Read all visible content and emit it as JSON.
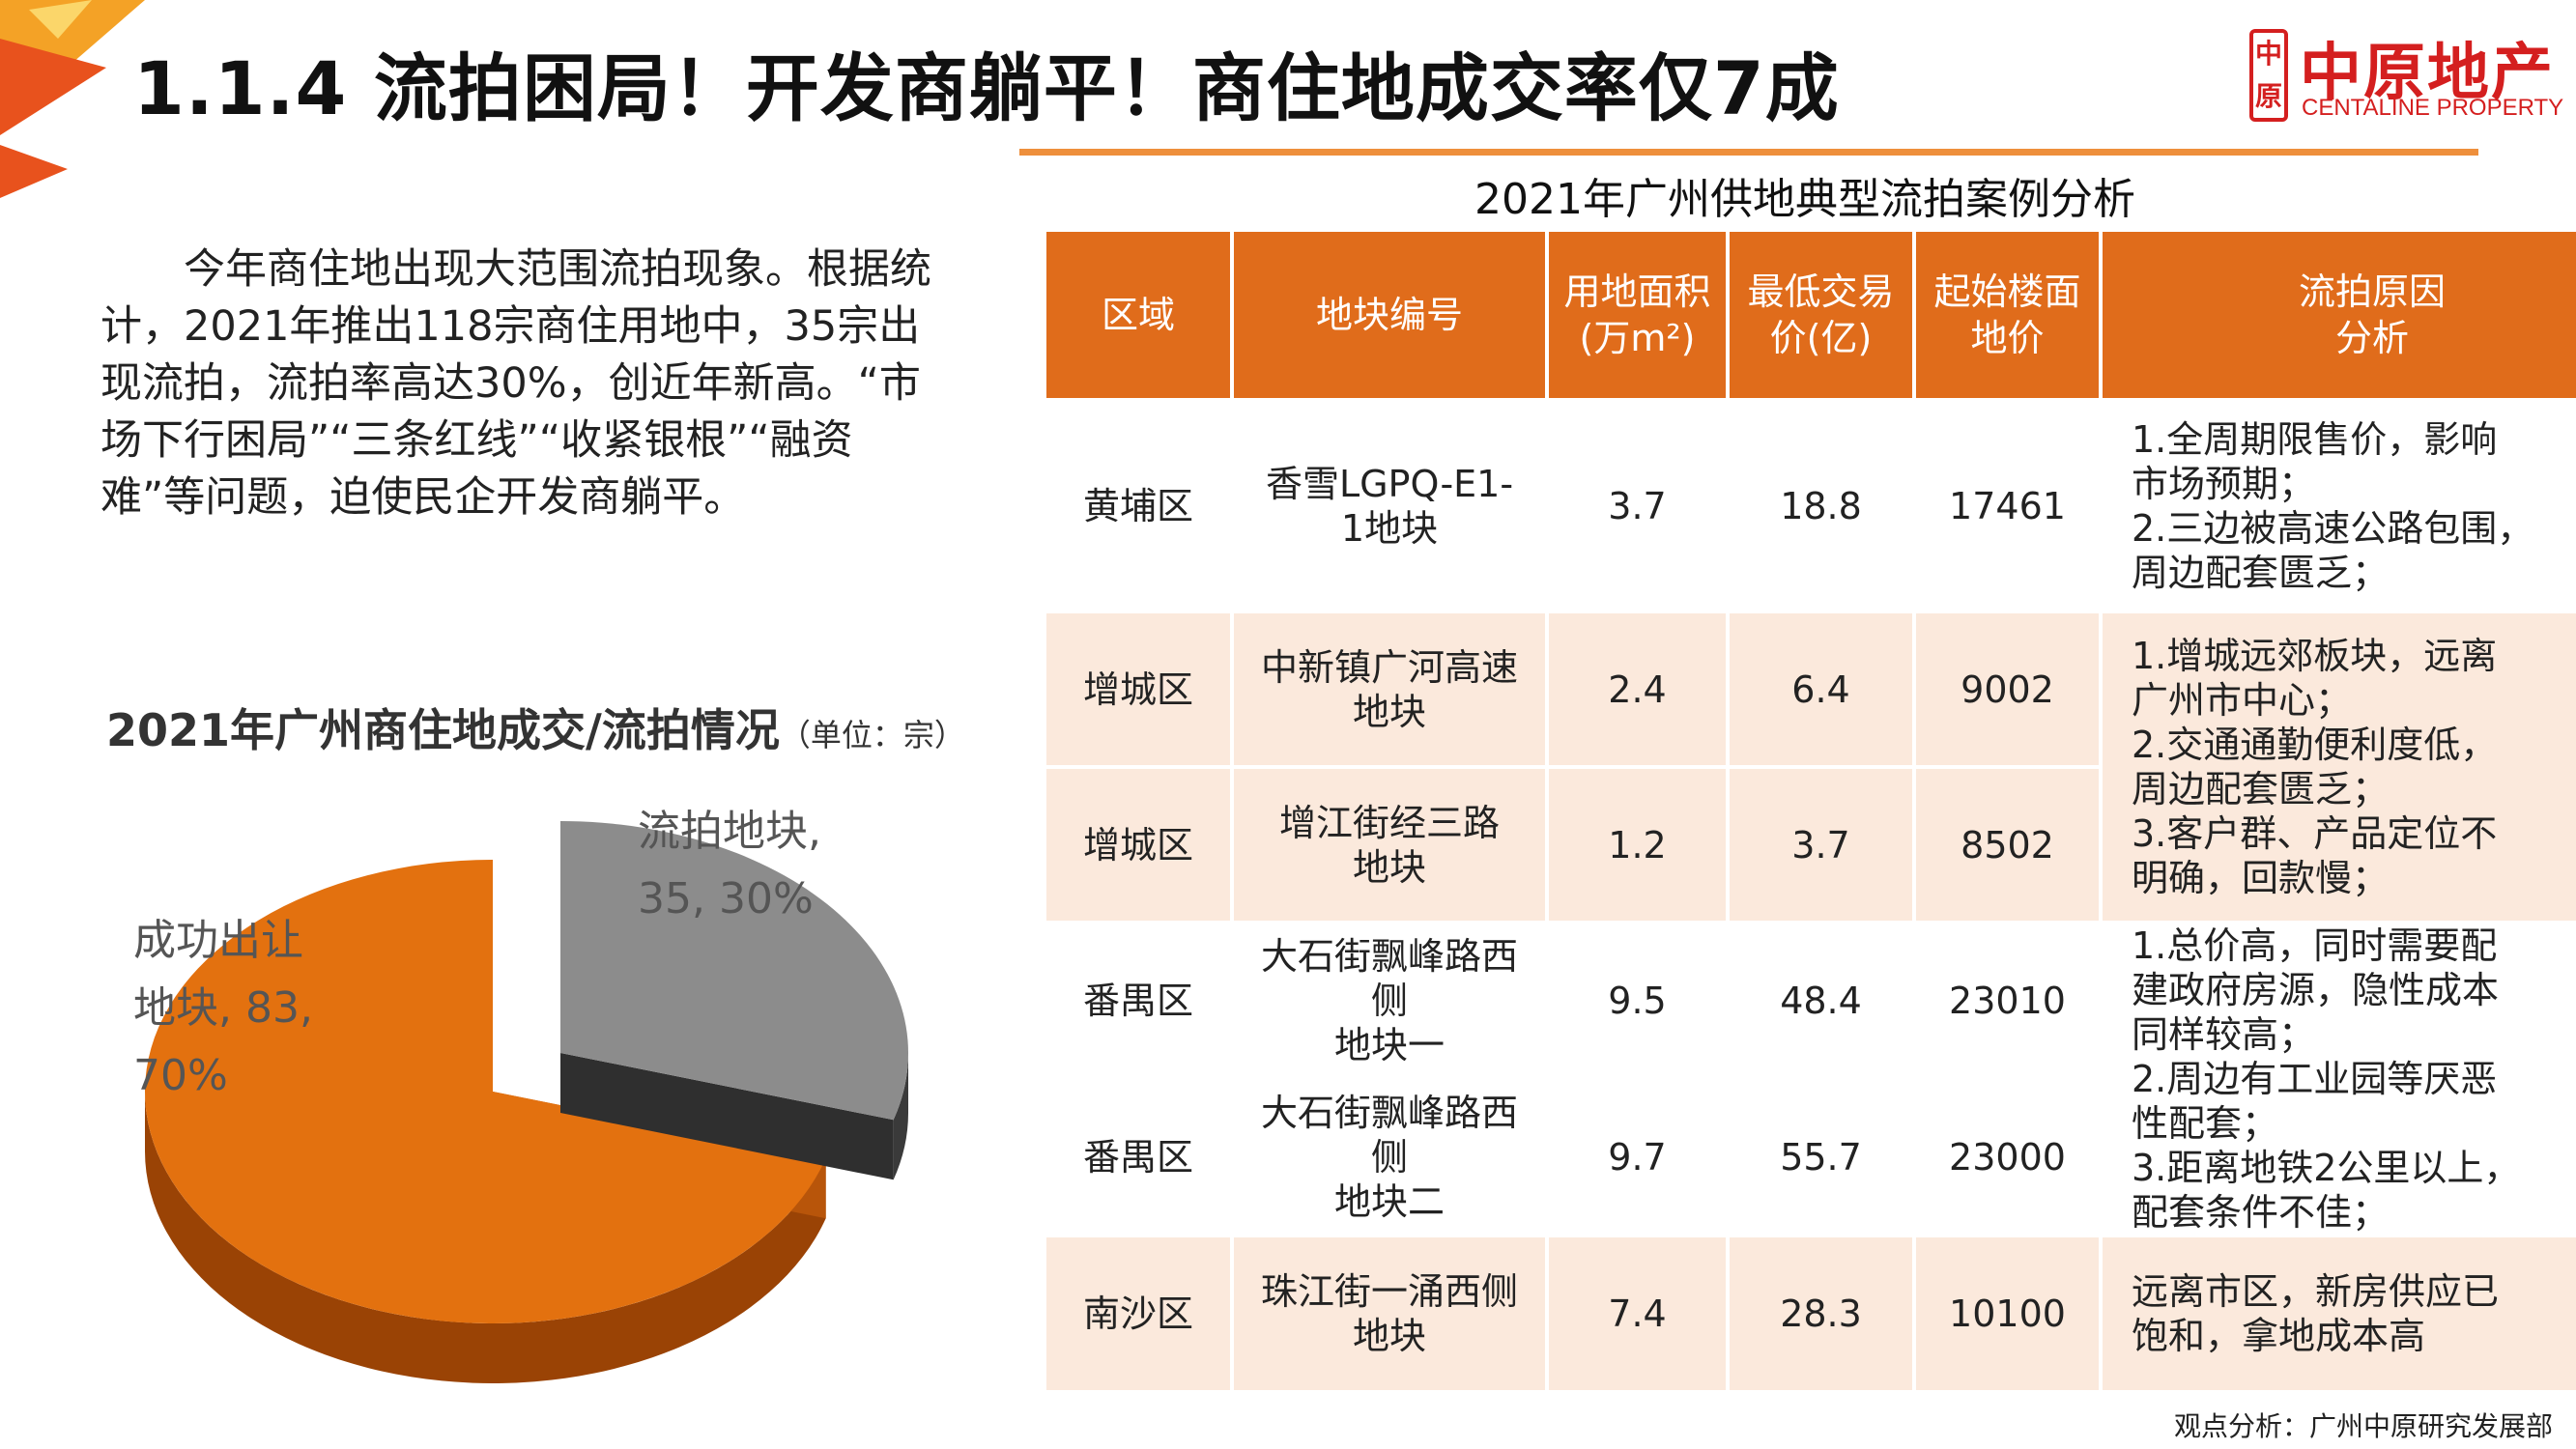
{
  "header": {
    "title": "1.1.4 流拍困局！开发商躺平！商住地成交率仅7成"
  },
  "logo": {
    "mark": "中原",
    "name_cn": "中原地产",
    "name_en": "CENTALINE PROPERTY"
  },
  "intro": {
    "text": "今年商住地出现大范围流拍现象。根据统计，2021年推出118宗商住用地中，35宗出现流拍，流拍率高达30%，创近年新高。“市场下行困局”“三条红线”“收紧银根”“融资难”等问题，迫使民企开发商躺平。"
  },
  "chart": {
    "title": "2021年广州商住地成交/流拍情况",
    "unit": "（单位：宗）",
    "label_sold": "成功出让\n地块, 83,\n70%",
    "label_failed": "流拍地块,\n35, 30%"
  },
  "chart_data": {
    "type": "pie",
    "title": "2021年广州商住地成交/流拍情况",
    "unit": "宗",
    "categories": [
      "成功出让地块",
      "流拍地块"
    ],
    "values": [
      83,
      35
    ],
    "percents": [
      70,
      30
    ],
    "colors": [
      "#e3710f",
      "#8c8c8c"
    ]
  },
  "table": {
    "title": "2021年广州供地典型流拍案例分析",
    "headers": [
      "区域",
      "地块编号",
      "用地面积\n(万m²)",
      "最低交易\n价(亿)",
      "起始楼面\n地价",
      "流拍原因\n分析"
    ],
    "rows": [
      {
        "district": "黄埔区",
        "parcel": "香雪LGPQ-E1-\n1地块",
        "area": "3.7",
        "price": "18.8",
        "floor_price": "17461"
      },
      {
        "district": "增城区",
        "parcel": "中新镇广河高速\n地块",
        "area": "2.4",
        "price": "6.4",
        "floor_price": "9002"
      },
      {
        "district": "增城区",
        "parcel": "增江街经三路\n地块",
        "area": "1.2",
        "price": "3.7",
        "floor_price": "8502"
      },
      {
        "district": "番禺区",
        "parcel": "大石街飘峰路西\n侧\n地块一",
        "area": "9.5",
        "price": "48.4",
        "floor_price": "23010"
      },
      {
        "district": "番禺区",
        "parcel": "大石街飘峰路西\n侧\n地块二",
        "area": "9.7",
        "price": "55.7",
        "floor_price": "23000"
      },
      {
        "district": "南沙区",
        "parcel": "珠江街一涌西侧\n地块",
        "area": "7.4",
        "price": "28.3",
        "floor_price": "10100"
      }
    ],
    "reasons": [
      "1.全周期限售价，影响\n市场预期；\n2.三边被高速公路包围，\n周边配套匮乏；",
      "1.增城远郊板块，远离\n广州市中心；\n2.交通通勤便利度低，\n周边配套匮乏；\n3.客户群、产品定位不\n明确，回款慢；",
      "1.总价高，同时需要配\n建政府房源，隐性成本\n同样较高；\n2.周边有工业园等厌恶\n性配套；\n3.距离地铁2公里以上，\n配套条件不佳；",
      "远离市区，新房供应已\n饱和，拿地成本高"
    ]
  },
  "footer": {
    "source": "观点分析：广州中原研究发展部"
  }
}
